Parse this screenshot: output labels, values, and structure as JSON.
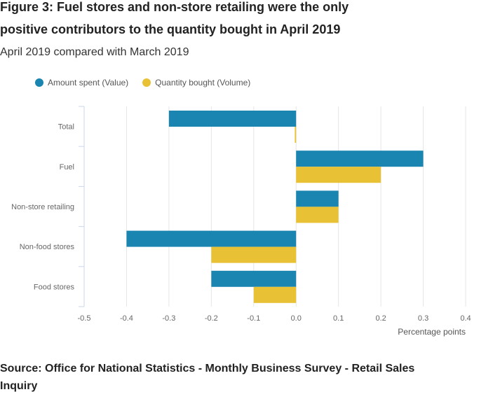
{
  "title": "Figure 3: Fuel stores and non-store retailing were the only positive contributors to the quantity bought in April 2019",
  "subtitle": "April 2019 compared with March 2019",
  "source": "Source: Office for National Statistics - Monthly Business Survey - Retail Sales Inquiry",
  "chart_data": {
    "type": "bar",
    "orientation": "horizontal",
    "categories": [
      "Total",
      "Fuel",
      "Non-store retailing",
      "Non-food stores",
      "Food stores"
    ],
    "series": [
      {
        "name": "Amount spent (Value)",
        "color": "#1a85b0",
        "values": [
          -0.3,
          0.3,
          0.1,
          -0.4,
          -0.2
        ]
      },
      {
        "name": "Quantity bought (Volume)",
        "color": "#e8c234",
        "values": [
          -0.003,
          0.2,
          0.1,
          -0.2,
          -0.1
        ]
      }
    ],
    "xlabel": "Percentage points",
    "xlim": [
      -0.5,
      0.4
    ],
    "xticks": [
      "-0.5",
      "-0.4",
      "-0.3",
      "-0.2",
      "-0.1",
      "0.0",
      "0.1",
      "0.2",
      "0.3",
      "0.4"
    ],
    "grid": true,
    "legend": "top-left"
  }
}
